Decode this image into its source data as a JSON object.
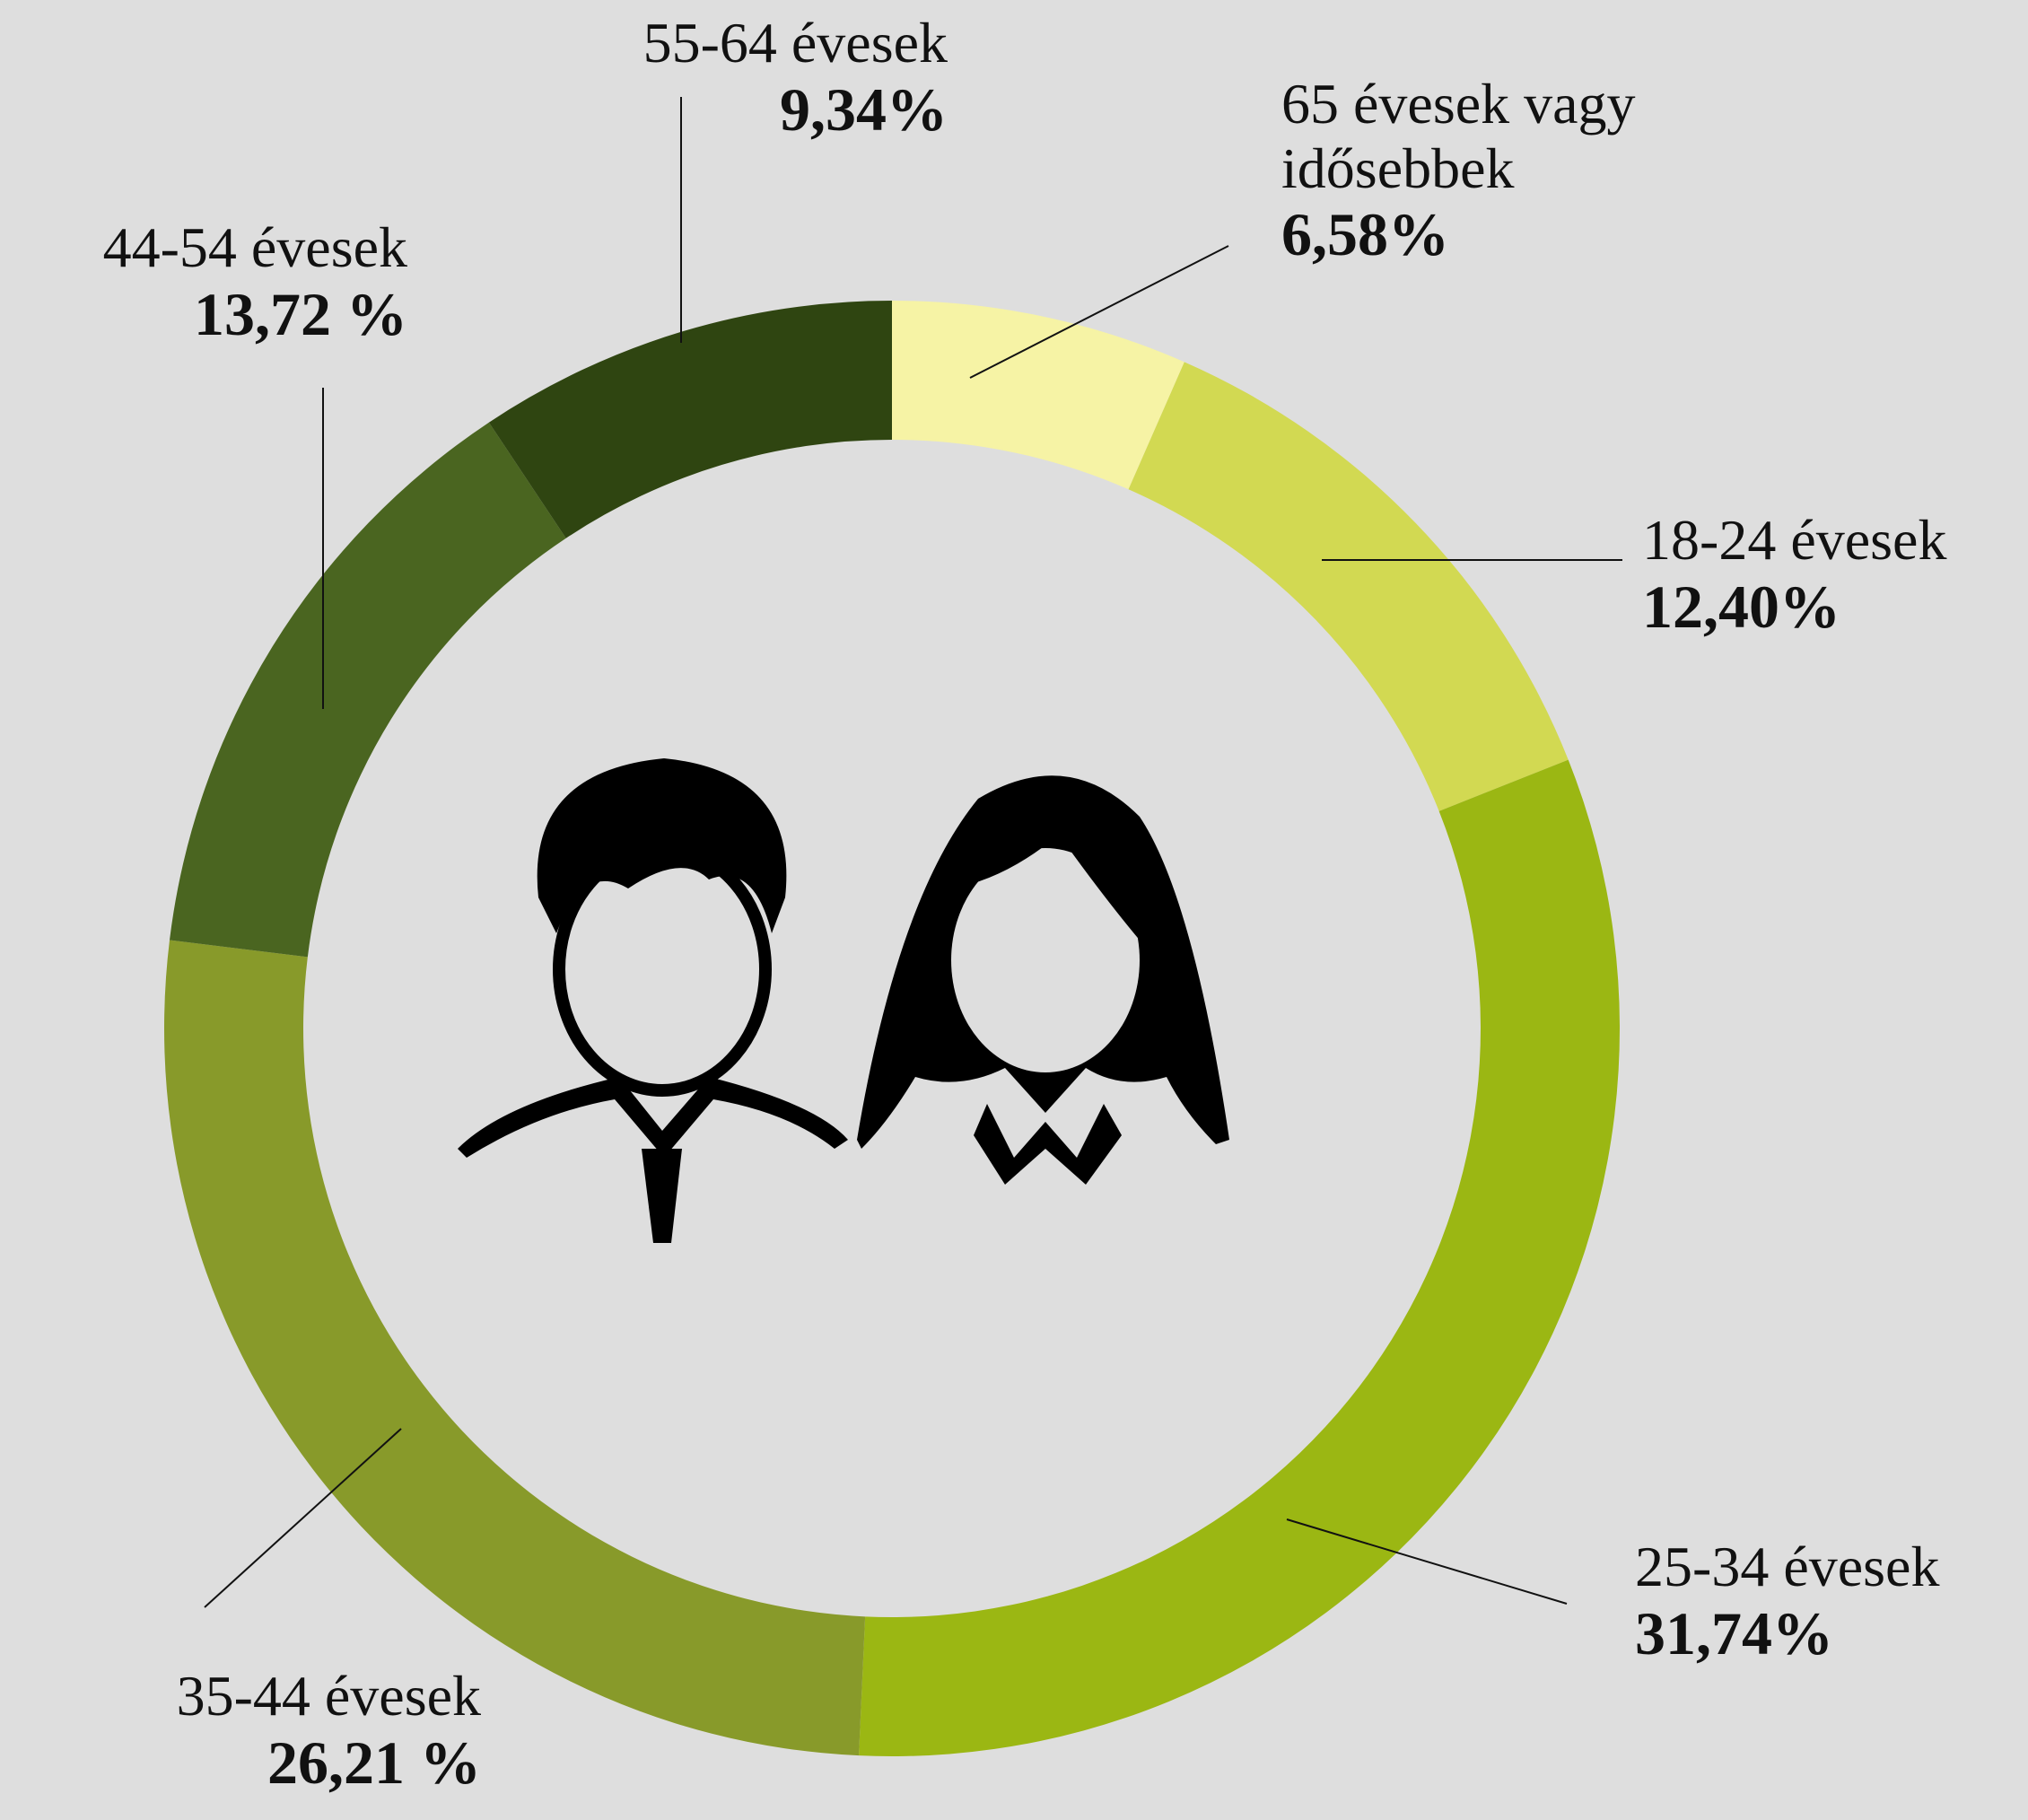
{
  "chart_data": {
    "type": "donut",
    "categories": [
      "65 évesek vagy idősebbek",
      "18-24 évesek",
      "25-34 évesek",
      "35-44 évesek",
      "44-54 évesek",
      "55-64 évesek"
    ],
    "values": [
      6.58,
      12.4,
      31.74,
      26.21,
      13.72,
      9.34
    ],
    "value_labels": [
      "6,58%",
      "12,40%",
      "31,74%",
      "26,21 %",
      "13,72 %",
      "9,34%"
    ],
    "colors": [
      "#f6f3a5",
      "#d2d952",
      "#9bb713",
      "#889a2a",
      "#4a6520",
      "#2f4511"
    ]
  }
}
